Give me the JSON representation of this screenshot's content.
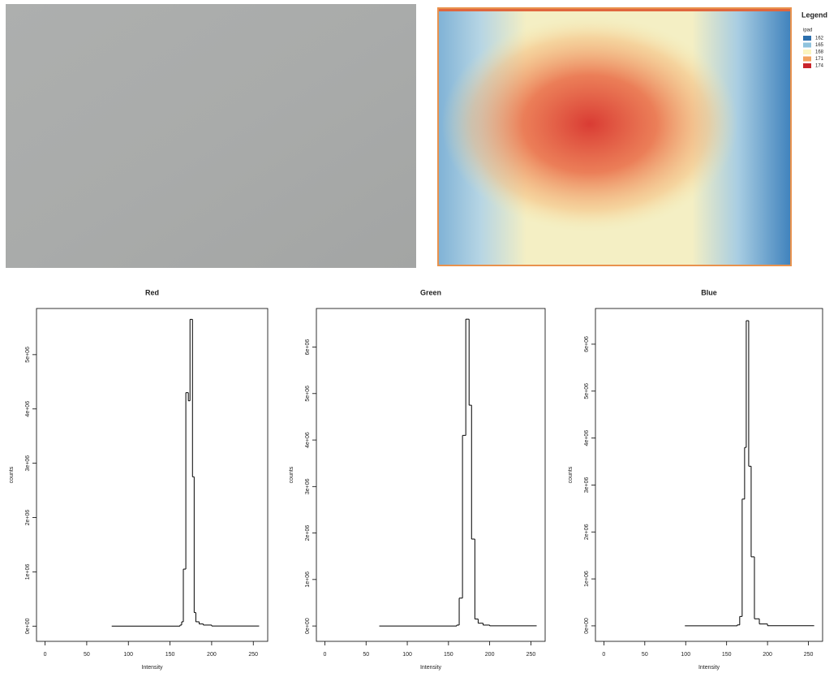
{
  "heatmap": {
    "legend_title": "Legend",
    "legend_subtitle": "ipad",
    "legend": [
      {
        "label": "162",
        "color": "#2c6fad"
      },
      {
        "label": "165",
        "color": "#8fc3dd"
      },
      {
        "label": "168",
        "color": "#fbf5c0"
      },
      {
        "label": "171",
        "color": "#f3a25e"
      },
      {
        "label": "174",
        "color": "#c9242b"
      }
    ]
  },
  "chart_data": [
    {
      "type": "histogram",
      "title": "Red",
      "xlabel": "Intensity",
      "ylabel": "counts",
      "color": "#000000",
      "bins": [
        80,
        162,
        164,
        166,
        169,
        172,
        174,
        177,
        179,
        181,
        185,
        190,
        200,
        257
      ],
      "counts": [
        0,
        20000,
        80000,
        1050000,
        4300000,
        4150000,
        5650000,
        2750000,
        250000,
        80000,
        40000,
        20000,
        3000
      ],
      "xlim": [
        -10.3,
        267.3
      ],
      "xticks": [
        0,
        50,
        100,
        150,
        200,
        250
      ],
      "ylim": [
        -280000,
        5850000
      ],
      "yticks": [
        {
          "value": 0,
          "label": "0e+00"
        },
        {
          "value": 1000000,
          "label": "1e+06"
        },
        {
          "value": 2000000,
          "label": "2e+06"
        },
        {
          "value": 3000000,
          "label": "3e+06"
        },
        {
          "value": 4000000,
          "label": "4e+06"
        },
        {
          "value": 5000000,
          "label": "5e+06"
        }
      ]
    },
    {
      "type": "histogram",
      "title": "Green",
      "xlabel": "Intensity",
      "ylabel": "counts",
      "color": "#000000",
      "bins": [
        66,
        160,
        163,
        167,
        171,
        175,
        178,
        182,
        186,
        192,
        200,
        257
      ],
      "counts": [
        0,
        20000,
        600000,
        4100000,
        6600000,
        4750000,
        1870000,
        150000,
        60000,
        20000,
        3000
      ],
      "xlim": [
        -10.3,
        267.3
      ],
      "xticks": [
        0,
        50,
        100,
        150,
        200,
        250
      ],
      "ylim": [
        -330000,
        6830000
      ],
      "yticks": [
        {
          "value": 0,
          "label": "0e+00"
        },
        {
          "value": 1000000,
          "label": "1e+06"
        },
        {
          "value": 2000000,
          "label": "2e+06"
        },
        {
          "value": 3000000,
          "label": "3e+06"
        },
        {
          "value": 4000000,
          "label": "4e+06"
        },
        {
          "value": 5000000,
          "label": "5e+06"
        },
        {
          "value": 6000000,
          "label": "6e+06"
        }
      ]
    },
    {
      "type": "histogram",
      "title": "Blue",
      "xlabel": "Intensity",
      "ylabel": "counts",
      "color": "#000000",
      "bins": [
        99,
        163,
        166,
        169,
        172,
        174,
        177,
        180,
        184,
        190,
        200,
        257
      ],
      "counts": [
        0,
        20000,
        200000,
        2700000,
        3800000,
        6500000,
        3400000,
        1470000,
        150000,
        40000,
        3000
      ],
      "xlim": [
        -10.3,
        267.3
      ],
      "xticks": [
        0,
        50,
        100,
        150,
        200,
        250
      ],
      "ylim": [
        -330000,
        6760000
      ],
      "yticks": [
        {
          "value": 0,
          "label": "0e+00"
        },
        {
          "value": 1000000,
          "label": "1e+06"
        },
        {
          "value": 2000000,
          "label": "2e+06"
        },
        {
          "value": 3000000,
          "label": "3e+06"
        },
        {
          "value": 4000000,
          "label": "4e+06"
        },
        {
          "value": 5000000,
          "label": "5e+06"
        },
        {
          "value": 6000000,
          "label": "6e+06"
        }
      ]
    }
  ]
}
